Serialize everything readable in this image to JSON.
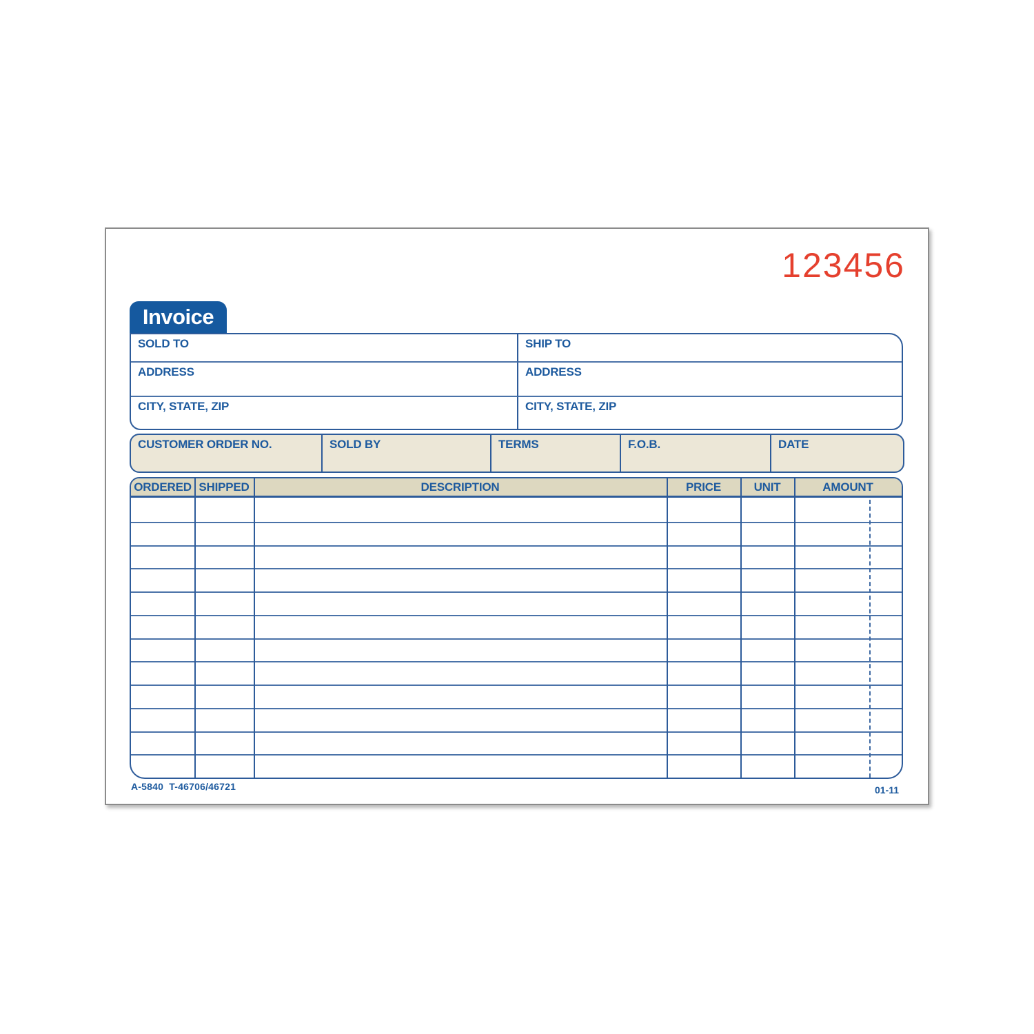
{
  "serial_number": "123456",
  "form": {
    "tab_title": "Invoice",
    "customer_info": {
      "left": {
        "line1": "SOLD TO",
        "line2": "ADDRESS",
        "line3": "CITY, STATE, ZIP"
      },
      "right": {
        "line1": "SHIP TO",
        "line2": "ADDRESS",
        "line3": "CITY, STATE, ZIP"
      }
    },
    "order_fields": [
      {
        "label": "CUSTOMER ORDER NO."
      },
      {
        "label": "SOLD BY"
      },
      {
        "label": "TERMS"
      },
      {
        "label": "F.O.B."
      },
      {
        "label": "DATE"
      }
    ],
    "line_items_table": {
      "columns": [
        "ORDERED",
        "SHIPPED",
        "DESCRIPTION",
        "PRICE",
        "UNIT",
        "AMOUNT"
      ],
      "row_count": 12,
      "rows_content": "all rows blank"
    },
    "footer": {
      "left": "A-5840  T-46706/46721",
      "right": "01-11"
    }
  },
  "colors": {
    "serial_red": "#e5402e",
    "tab_blue": "#15599f",
    "line_blue": "#2d5b9a",
    "label_blue": "#1d5a9e",
    "band_tan": "#ece7d7",
    "header_tan": "#ddd8c0",
    "paper_border_gray": "#8b8b8b"
  }
}
